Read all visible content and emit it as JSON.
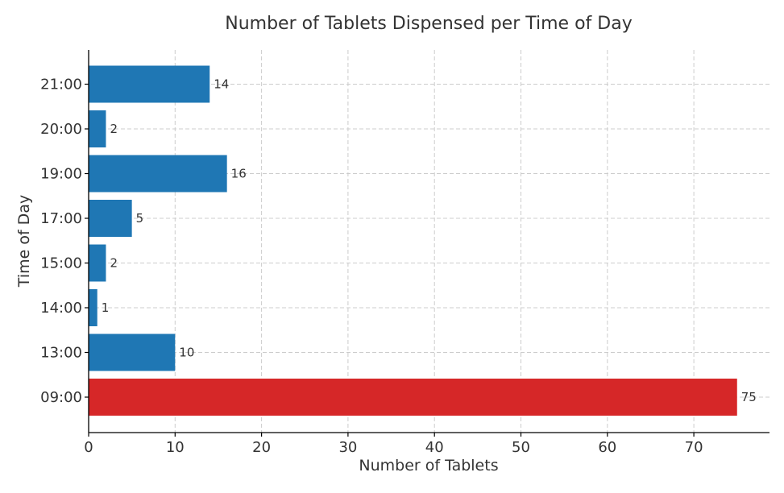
{
  "chart_data": {
    "type": "bar",
    "orientation": "horizontal",
    "title": "Number of Tablets Dispensed per Time of Day",
    "xlabel": "Number of Tablets",
    "ylabel": "Time of Day",
    "categories": [
      "09:00",
      "13:00",
      "14:00",
      "15:00",
      "17:00",
      "19:00",
      "20:00",
      "21:00"
    ],
    "values": [
      75,
      10,
      1,
      2,
      5,
      16,
      2,
      14
    ],
    "bar_colors": [
      "#d62728",
      "#1f77b4",
      "#1f77b4",
      "#1f77b4",
      "#1f77b4",
      "#1f77b4",
      "#1f77b4",
      "#1f77b4"
    ],
    "xlim": [
      0,
      78.75
    ],
    "xticks": [
      0,
      10,
      20,
      30,
      40,
      50,
      60,
      70
    ],
    "grid": true,
    "data_labels": true
  }
}
